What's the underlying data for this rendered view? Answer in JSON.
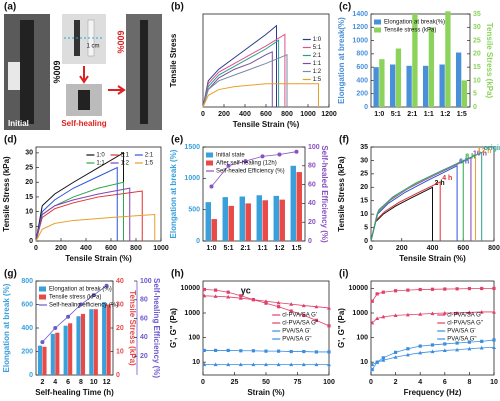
{
  "photo_panel": {
    "label": "(a)",
    "strain_left": "600%",
    "scale": "1 cm",
    "initial": "Initial",
    "self_healing": "Self-healing",
    "strain_right": "600%"
  },
  "chart_data": [
    {
      "type": "line",
      "label": "(b)",
      "xlabel": "Tensile Strain (%)",
      "ylabel": "Tensile Stress",
      "xlim": [
        0,
        1200
      ],
      "xticks": [
        0,
        200,
        400,
        600,
        800,
        1000,
        1200
      ],
      "ylim": [
        0,
        32
      ],
      "legend": "center right",
      "series": [
        {
          "name": "1:0",
          "color": "#2b3a8c",
          "x": [
            0,
            50,
            150,
            300,
            450,
            600,
            700,
            700
          ],
          "values": [
            0,
            9,
            13,
            17,
            21,
            25,
            28,
            0
          ]
        },
        {
          "name": "5:1",
          "color": "#e0508a",
          "x": [
            0,
            50,
            150,
            300,
            450,
            600,
            780,
            780
          ],
          "values": [
            0,
            8,
            12,
            15,
            18,
            21,
            25,
            0
          ]
        },
        {
          "name": "2:1",
          "color": "#2a9d8f",
          "x": [
            0,
            50,
            150,
            300,
            450,
            600,
            720,
            720
          ],
          "values": [
            0,
            7,
            11,
            14,
            17,
            20,
            23,
            0
          ]
        },
        {
          "name": "1:1",
          "color": "#7b4fa0",
          "x": [
            0,
            50,
            150,
            300,
            450,
            600,
            660,
            660
          ],
          "values": [
            0,
            6,
            10,
            13,
            15,
            18,
            19,
            0
          ]
        },
        {
          "name": "1:2",
          "color": "#7a8aa0",
          "x": [
            0,
            50,
            150,
            300,
            450,
            600,
            800,
            800
          ],
          "values": [
            0,
            6,
            9,
            11,
            13,
            15,
            18,
            0
          ]
        },
        {
          "name": "1:5",
          "color": "#e6a02a",
          "x": [
            0,
            50,
            150,
            300,
            600,
            900,
            1100,
            1100
          ],
          "values": [
            0,
            4,
            6,
            7,
            8,
            8,
            8,
            0
          ]
        }
      ]
    },
    {
      "type": "combo",
      "label": "(c)",
      "categories": [
        "1:0",
        "5:1",
        "2:1",
        "1:1",
        "1:2",
        "1:5"
      ],
      "ylabel": "Elongation at break(%)",
      "y2label": "Tensile Stress (kPa)",
      "ylim": [
        0,
        1400
      ],
      "yticks": [
        0,
        200,
        400,
        600,
        800,
        1000,
        1200,
        1400
      ],
      "y2lim": [
        0,
        35
      ],
      "y2ticks": [
        0,
        5,
        10,
        15,
        20,
        25,
        30,
        35
      ],
      "legend": "upper left",
      "series": [
        {
          "name": "Elongation at break(%)",
          "kind": "bar",
          "color": "#4a90d9",
          "values": [
            600,
            640,
            620,
            620,
            640,
            820
          ]
        },
        {
          "name": "Tensile stress (kPa)",
          "kind": "bar",
          "axis": "y2",
          "color": "#8bd35a",
          "values": [
            18,
            22,
            35,
            30,
            36,
            10
          ]
        }
      ]
    },
    {
      "type": "line",
      "label": "(d)",
      "xlabel": "Tensile Strain (%)",
      "ylabel": "Tensile Stress (kPa)",
      "xlim": [
        0,
        1000
      ],
      "xticks": [
        0,
        200,
        400,
        600,
        800,
        1000
      ],
      "ylim": [
        0,
        32
      ],
      "yticks": [
        0,
        5,
        10,
        15,
        20,
        25,
        30
      ],
      "legend": "upper right",
      "series": [
        {
          "name": "1:0",
          "color": "#111111",
          "x": [
            0,
            50,
            150,
            300,
            500,
            700,
            700
          ],
          "values": [
            0,
            12,
            16,
            20,
            25,
            30,
            0
          ]
        },
        {
          "name": "5:1",
          "color": "#e03030",
          "x": [
            0,
            50,
            150,
            300,
            500,
            850,
            850
          ],
          "values": [
            0,
            8,
            11,
            13,
            15,
            17,
            0
          ]
        },
        {
          "name": "2:1",
          "color": "#2d55d6",
          "x": [
            0,
            50,
            150,
            300,
            500,
            650,
            650
          ],
          "values": [
            0,
            10,
            14,
            18,
            22,
            25,
            0
          ]
        },
        {
          "name": "1:1",
          "color": "#2fa84a",
          "x": [
            0,
            50,
            150,
            300,
            500,
            700,
            700
          ],
          "values": [
            0,
            9,
            12,
            15,
            18,
            20,
            0
          ]
        },
        {
          "name": "1:2",
          "color": "#8a3fb0",
          "x": [
            0,
            50,
            150,
            300,
            500,
            750,
            750
          ],
          "values": [
            0,
            9,
            12,
            14,
            16,
            18,
            0
          ]
        },
        {
          "name": "1:5",
          "color": "#e6a02a",
          "x": [
            0,
            50,
            150,
            300,
            600,
            950,
            950
          ],
          "values": [
            0,
            4,
            6,
            7,
            8,
            9,
            0
          ]
        }
      ]
    },
    {
      "type": "combo",
      "label": "(e)",
      "categories": [
        "1:0",
        "5:1",
        "2:1",
        "1:1",
        "1:2",
        "1:5"
      ],
      "ylabel": "Elongation at break (%)",
      "y2label": "Self-healed Efficiency (%)",
      "ylim": [
        0,
        1500
      ],
      "yticks": [
        0,
        500,
        1000,
        1500
      ],
      "y2lim": [
        0,
        100
      ],
      "y2ticks": [
        0,
        20,
        40,
        60,
        80,
        100
      ],
      "legend": "upper left",
      "series": [
        {
          "name": "Initial state",
          "kind": "bar",
          "color": "#3aa0dc",
          "values": [
            620,
            700,
            710,
            730,
            720,
            1200
          ]
        },
        {
          "name": "After self-healing (12h)",
          "kind": "bar",
          "color": "#e84a4a",
          "values": [
            350,
            560,
            600,
            650,
            660,
            1100
          ]
        },
        {
          "name": "Self-healed Efficiency (%)",
          "kind": "line",
          "axis": "y2",
          "marker": "circle",
          "color": "#8a4fc0",
          "values": [
            58,
            80,
            85,
            90,
            92,
            95
          ]
        }
      ]
    },
    {
      "type": "line",
      "label": "(f)",
      "xlabel": "Tensile Strain (%)",
      "ylabel": "Tensile Stress (kPa)",
      "xlim": [
        0,
        800
      ],
      "xticks": [
        0,
        200,
        400,
        600,
        800
      ],
      "ylim": [
        0,
        35
      ],
      "yticks": [
        0,
        5,
        10,
        15,
        20,
        25,
        30,
        35
      ],
      "series_labels": "end",
      "series": [
        {
          "name": "2 h",
          "color": "#111111",
          "x": [
            0,
            28,
            80,
            160,
            260,
            400,
            400
          ],
          "values": [
            0,
            7,
            10,
            13,
            16,
            20,
            0
          ]
        },
        {
          "name": "4 h",
          "color": "#e03030",
          "x": [
            0,
            32,
            90,
            180,
            293,
            450,
            450
          ],
          "values": [
            0,
            7.7,
            11,
            14.3,
            17.6,
            22,
            0
          ]
        },
        {
          "name": "6 h",
          "color": "#2d55d6",
          "x": [
            0,
            39,
            112,
            224,
            364,
            560,
            560
          ],
          "values": [
            0,
            9.8,
            14,
            18.2,
            22.4,
            28,
            0
          ]
        },
        {
          "name": "8 h",
          "color": "#2fa84a",
          "x": [
            0,
            42,
            120,
            240,
            390,
            600,
            600
          ],
          "values": [
            0,
            10.5,
            15,
            19.5,
            24,
            30,
            0
          ]
        },
        {
          "name": "10 h",
          "color": "#8a3fb0",
          "x": [
            0,
            46,
            130,
            260,
            423,
            650,
            650
          ],
          "values": [
            0,
            10.9,
            15.5,
            20.2,
            24.8,
            31,
            0
          ]
        },
        {
          "name": "12 h",
          "color": "#e6a02a",
          "x": [
            0,
            48,
            136,
            272,
            442,
            680,
            680
          ],
          "values": [
            0,
            11.2,
            16,
            20.8,
            25.6,
            32,
            0
          ]
        },
        {
          "name": "original",
          "color": "#2a9d8f",
          "x": [
            0,
            50,
            144,
            288,
            468,
            720,
            720
          ],
          "values": [
            0,
            11.6,
            16.5,
            21.5,
            26.4,
            33,
            0
          ]
        }
      ]
    },
    {
      "type": "combo",
      "label": "(g)",
      "categories": [
        "2",
        "4",
        "6",
        "8",
        "10",
        "12"
      ],
      "xlabel": "Self-healing Time (h)",
      "ylabel": "Elongation at break (%)",
      "y2label": "Tensile Stress (kPa)",
      "y3label": "Self-healing Efficiency (%)",
      "ylim": [
        0,
        800
      ],
      "yticks": [
        0,
        200,
        400,
        600,
        800
      ],
      "y2lim": [
        0,
        40
      ],
      "y2ticks": [
        0,
        10,
        20,
        30,
        40
      ],
      "y3lim": [
        0,
        100
      ],
      "y3ticks": [
        20,
        40,
        60,
        80,
        100
      ],
      "legend": "upper left",
      "series": [
        {
          "name": "Elongation at break (%)",
          "kind": "bar",
          "color": "#3aa0dc",
          "values": [
            250,
            350,
            420,
            500,
            560,
            620
          ]
        },
        {
          "name": "Tensile stress (kPa)",
          "kind": "bar",
          "axis": "y2",
          "color": "#e84a4a",
          "values": [
            12,
            18,
            22,
            26,
            28,
            30
          ]
        },
        {
          "name": "Self-healing efficiency (%)",
          "kind": "line",
          "axis": "y3",
          "marker": "circle",
          "color": "#6a5acd",
          "values": [
            35,
            50,
            62,
            75,
            85,
            95
          ]
        }
      ]
    },
    {
      "type": "line",
      "label": "(h)",
      "xlabel": "Strain (%)",
      "ylabel": "G', G\" (Pa)",
      "annotation": "γc",
      "xlim": [
        0,
        100
      ],
      "xticks": [
        0,
        25,
        50,
        75,
        100
      ],
      "ylog": true,
      "ylim": [
        3,
        20000
      ],
      "yticks": [
        10,
        100,
        1000,
        10000
      ],
      "legend": "center right",
      "series": [
        {
          "name": "cl-PVA/SA G'",
          "color": "#e0406a",
          "marker": "square",
          "x": [
            1,
            10,
            20,
            30,
            40,
            50,
            60,
            70,
            80,
            90,
            100
          ],
          "values": [
            9000,
            8500,
            7000,
            5000,
            3500,
            2500,
            1800,
            1200,
            800,
            500,
            300
          ]
        },
        {
          "name": "cl-PVA/SA G\"",
          "color": "#e0406a",
          "marker": "triangle",
          "x": [
            1,
            10,
            20,
            30,
            40,
            50,
            60,
            70,
            80,
            90,
            100
          ],
          "values": [
            5000,
            4800,
            4500,
            4000,
            3500,
            3000,
            2600,
            2300,
            2000,
            1800,
            1600
          ]
        },
        {
          "name": "PVA/SA G'",
          "color": "#3a8ee0",
          "marker": "square",
          "x": [
            1,
            10,
            20,
            30,
            40,
            50,
            60,
            70,
            80,
            90,
            100
          ],
          "values": [
            30,
            30,
            30,
            29,
            29,
            28,
            28,
            27,
            27,
            26,
            26
          ]
        },
        {
          "name": "PVA/SA G\"",
          "color": "#3a8ee0",
          "marker": "triangle",
          "x": [
            1,
            10,
            20,
            30,
            40,
            50,
            60,
            70,
            80,
            90,
            100
          ],
          "values": [
            8,
            8,
            8,
            8,
            8,
            8,
            8,
            8,
            8,
            8,
            8
          ]
        }
      ]
    },
    {
      "type": "line",
      "label": "(i)",
      "xlabel": "Frequency (Hz)",
      "ylabel": "G', G\" (Pa)",
      "xlim": [
        0,
        10
      ],
      "xticks": [
        0,
        2,
        4,
        6,
        8,
        10
      ],
      "ylog": true,
      "ylim": [
        3,
        20000
      ],
      "yticks": [
        10,
        100,
        1000,
        10000
      ],
      "legend": "center right",
      "series": [
        {
          "name": "cl-PVA/SA G'",
          "color": "#e0406a",
          "marker": "square",
          "x": [
            0.1,
            0.5,
            1,
            2,
            3,
            4,
            5,
            6,
            7,
            8,
            9,
            10
          ],
          "values": [
            3000,
            6000,
            7000,
            8000,
            8500,
            9000,
            9200,
            9400,
            9600,
            9800,
            9900,
            10000
          ]
        },
        {
          "name": "cl-PVA/SA G\"",
          "color": "#e0406a",
          "marker": "triangle",
          "x": [
            0.1,
            0.5,
            1,
            2,
            3,
            4,
            5,
            6,
            7,
            8,
            9,
            10
          ],
          "values": [
            400,
            600,
            700,
            800,
            850,
            900,
            950,
            1000,
            1000,
            1050,
            1100,
            1100
          ]
        },
        {
          "name": "PVA/SA G'",
          "color": "#3a8ee0",
          "marker": "square",
          "x": [
            0.1,
            0.5,
            1,
            2,
            3,
            4,
            5,
            6,
            7,
            8,
            9,
            10
          ],
          "values": [
            5,
            10,
            15,
            25,
            35,
            45,
            50,
            55,
            60,
            65,
            70,
            80
          ]
        },
        {
          "name": "PVA/SA G\"",
          "color": "#3a8ee0",
          "marker": "triangle",
          "x": [
            0.1,
            0.5,
            1,
            2,
            3,
            4,
            5,
            6,
            7,
            8,
            9,
            10
          ],
          "values": [
            8,
            10,
            12,
            16,
            20,
            24,
            27,
            30,
            32,
            35,
            38,
            40
          ]
        }
      ]
    }
  ]
}
